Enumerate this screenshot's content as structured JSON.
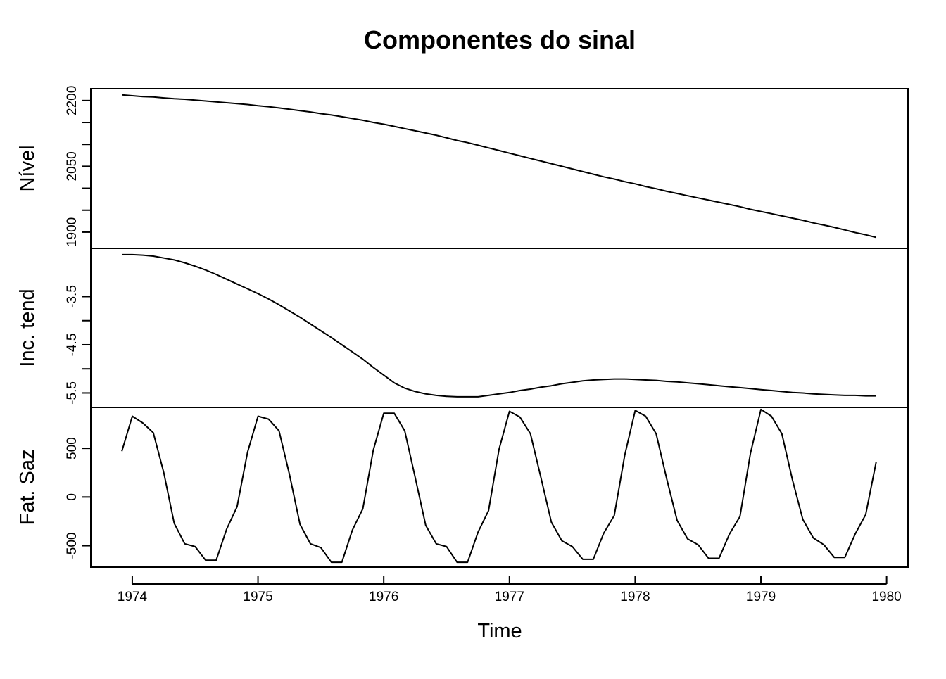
{
  "chart_data": {
    "type": "line",
    "title": "Componentes do sinal",
    "xlabel": "Time",
    "x_ticks": [
      "1974",
      "1975",
      "1976",
      "1977",
      "1978",
      "1979",
      "1980"
    ],
    "x_range": [
      1973.917,
      1979.917
    ],
    "xlim": [
      1973.67,
      1980.17
    ],
    "panels": [
      {
        "ylabel": "Nível",
        "ylim": [
          1863,
          2227
        ],
        "y_ticks": [
          1900,
          1950,
          2000,
          2050,
          2100,
          2150,
          2200
        ],
        "y_tick_labels": [
          "1900",
          "",
          "2050",
          "",
          "2200"
        ],
        "y_tick_label_values": [
          1900,
          1975,
          2050,
          2125,
          2200
        ],
        "values": [
          2213,
          2211,
          2209,
          2208,
          2206,
          2204,
          2203,
          2201,
          2199,
          2197,
          2195,
          2193,
          2191,
          2188,
          2186,
          2183,
          2180,
          2177,
          2174,
          2170,
          2167,
          2163,
          2159,
          2155,
          2150,
          2146,
          2141,
          2136,
          2131,
          2126,
          2121,
          2115,
          2109,
          2104,
          2098,
          2092,
          2086,
          2080,
          2074,
          2068,
          2062,
          2056,
          2050,
          2044,
          2038,
          2032,
          2026,
          2021,
          2015,
          2010,
          2004,
          1999,
          1993,
          1988,
          1983,
          1978,
          1973,
          1968,
          1963,
          1958,
          1952,
          1947,
          1942,
          1937,
          1932,
          1927,
          1921,
          1916,
          1911,
          1905,
          1899,
          1894,
          1888
        ]
      },
      {
        "ylabel": "Inc. tend",
        "ylim": [
          -5.8,
          -2.5
        ],
        "y_ticks": [
          -3.5,
          -4.0,
          -4.5,
          -5.0,
          -5.5
        ],
        "y_tick_labels": [
          "-3.5",
          "",
          "-4.5",
          "",
          "-5.5"
        ],
        "values": [
          -2.63,
          -2.63,
          -2.64,
          -2.66,
          -2.7,
          -2.74,
          -2.8,
          -2.87,
          -2.95,
          -3.04,
          -3.14,
          -3.24,
          -3.34,
          -3.44,
          -3.55,
          -3.67,
          -3.8,
          -3.93,
          -4.07,
          -4.21,
          -4.35,
          -4.5,
          -4.65,
          -4.8,
          -4.97,
          -5.13,
          -5.29,
          -5.4,
          -5.47,
          -5.52,
          -5.55,
          -5.57,
          -5.58,
          -5.58,
          -5.58,
          -5.55,
          -5.52,
          -5.49,
          -5.45,
          -5.42,
          -5.38,
          -5.35,
          -5.31,
          -5.28,
          -5.25,
          -5.23,
          -5.22,
          -5.21,
          -5.21,
          -5.22,
          -5.23,
          -5.24,
          -5.26,
          -5.27,
          -5.29,
          -5.31,
          -5.33,
          -5.35,
          -5.37,
          -5.39,
          -5.41,
          -5.43,
          -5.45,
          -5.47,
          -5.49,
          -5.5,
          -5.52,
          -5.53,
          -5.54,
          -5.55,
          -5.55,
          -5.56,
          -5.56
        ]
      },
      {
        "ylabel": "Fat. Saz",
        "ylim": [
          -720,
          920
        ],
        "y_ticks": [
          -500,
          0,
          500
        ],
        "y_tick_labels": [
          "-500",
          "0",
          "500"
        ],
        "values": [
          470,
          830,
          760,
          660,
          250,
          -270,
          -480,
          -510,
          -650,
          -650,
          -330,
          -100,
          460,
          830,
          800,
          680,
          230,
          -280,
          -480,
          -520,
          -670,
          -670,
          -340,
          -120,
          480,
          860,
          860,
          680,
          200,
          -290,
          -480,
          -510,
          -670,
          -670,
          -360,
          -140,
          490,
          880,
          820,
          650,
          200,
          -260,
          -450,
          -510,
          -640,
          -640,
          -370,
          -190,
          430,
          890,
          830,
          650,
          190,
          -240,
          -430,
          -490,
          -630,
          -630,
          -380,
          -200,
          450,
          900,
          830,
          650,
          180,
          -230,
          -420,
          -490,
          -620,
          -620,
          -380,
          -180,
          360
        ]
      }
    ]
  }
}
